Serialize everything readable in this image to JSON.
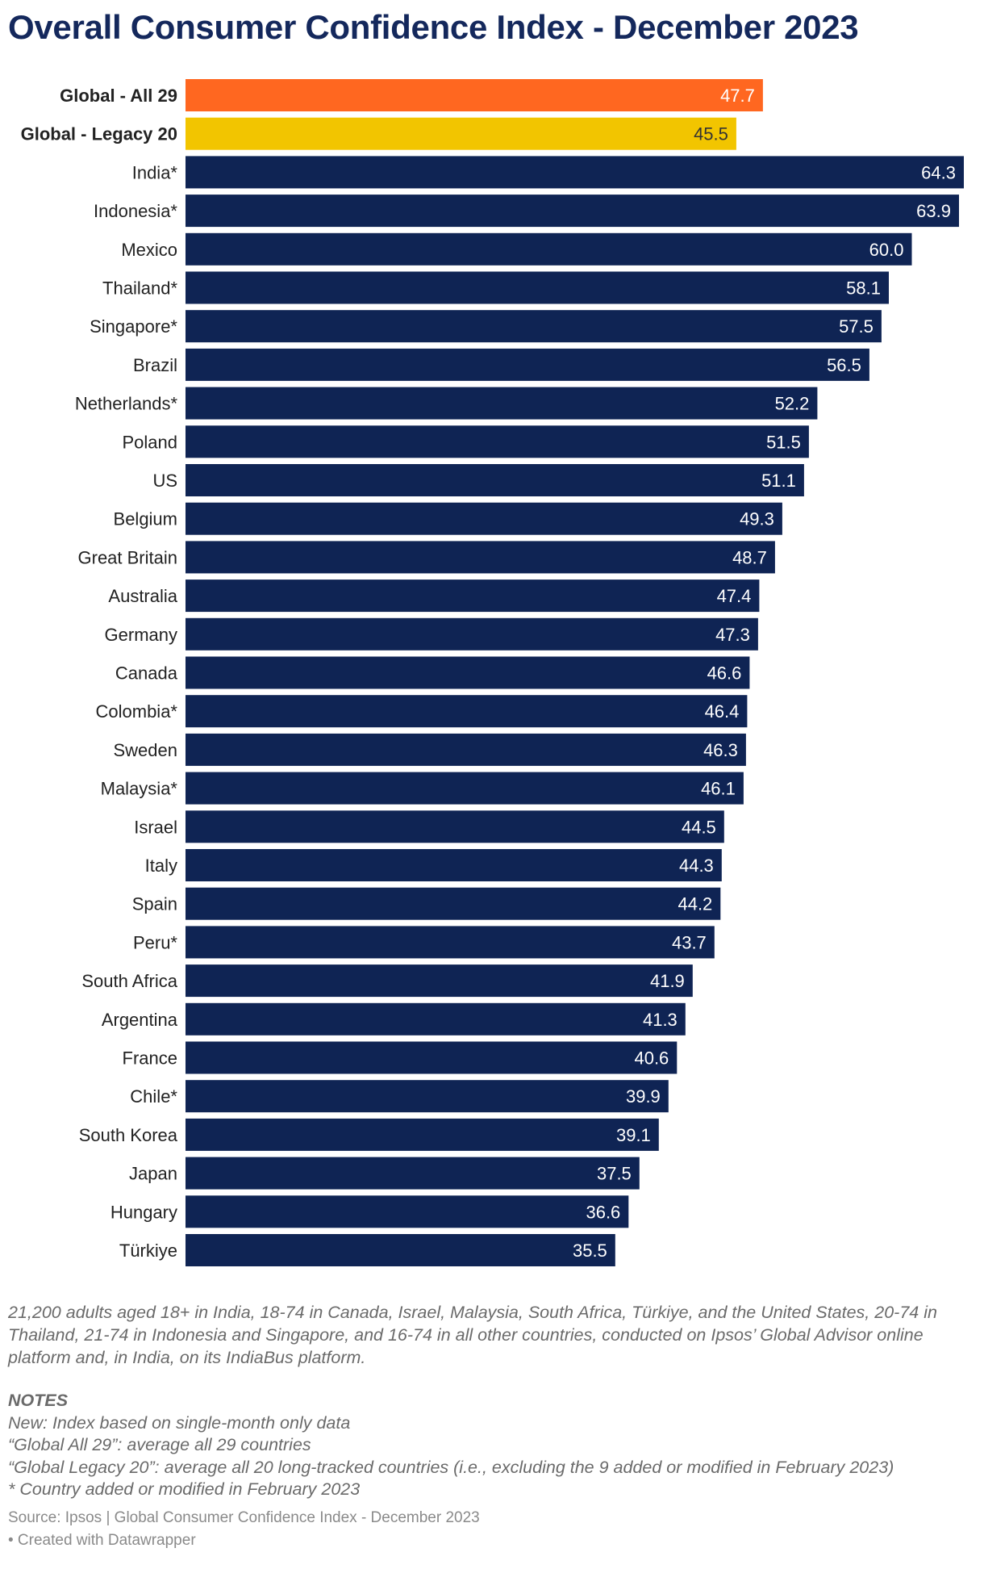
{
  "title": "Overall Consumer Confidence Index - December 2023",
  "description": "21,200 adults aged 18+ in India, 18-74 in Canada, Israel, Malaysia, South Africa, Türkiye, and the United States, 20-74 in Thailand, 21-74 in Indonesia and Singapore, and 16-74 in all other countries, conducted on Ipsos’ Global Advisor online platform and, in India, on its IndiaBus platform.",
  "notes": {
    "heading": "NOTES",
    "lines": [
      "New: Index based on single-month only data",
      "“Global All 29”: average all 29 countries",
      "“Global Legacy 20”: average all 20 long-tracked countries (i.e., excluding the 9 added or modified in February 2023)",
      "* Country added or modified in February 2023"
    ]
  },
  "source": "Source: Ipsos | Global Consumer Confidence Index - December 2023",
  "credit": "• Created with Datawrapper",
  "colors": {
    "global_all": "#ff6720",
    "global_legacy": "#f2c500",
    "country": "#0f2454",
    "title": "#14285c"
  },
  "chart_data": {
    "type": "bar",
    "orientation": "horizontal",
    "title": "Overall Consumer Confidence Index - December 2023",
    "xlabel": "",
    "ylabel": "",
    "xlim": [
      0,
      64.3
    ],
    "grid": false,
    "legend": "none",
    "categories": [
      "Global - All 29",
      "Global - Legacy 20",
      "India*",
      "Indonesia*",
      "Mexico",
      "Thailand*",
      "Singapore*",
      "Brazil",
      "Netherlands*",
      "Poland",
      "US",
      "Belgium",
      "Great Britain",
      "Australia",
      "Germany",
      "Canada",
      "Colombia*",
      "Sweden",
      "Malaysia*",
      "Israel",
      "Italy",
      "Spain",
      "Peru*",
      "South Africa",
      "Argentina",
      "France",
      "Chile*",
      "South Korea",
      "Japan",
      "Hungary",
      "Türkiye"
    ],
    "values": [
      47.7,
      45.5,
      64.3,
      63.9,
      60.0,
      58.1,
      57.5,
      56.5,
      52.2,
      51.5,
      51.1,
      49.3,
      48.7,
      47.4,
      47.3,
      46.6,
      46.4,
      46.3,
      46.1,
      44.5,
      44.3,
      44.2,
      43.7,
      41.9,
      41.3,
      40.6,
      39.9,
      39.1,
      37.5,
      36.6,
      35.5
    ],
    "value_labels": [
      "47.7",
      "45.5",
      "64.3",
      "63.9",
      "60.0",
      "58.1",
      "57.5",
      "56.5",
      "52.2",
      "51.5",
      "51.1",
      "49.3",
      "48.7",
      "47.4",
      "47.3",
      "46.6",
      "46.4",
      "46.3",
      "46.1",
      "44.5",
      "44.3",
      "44.2",
      "43.7",
      "41.9",
      "41.3",
      "40.6",
      "39.9",
      "39.1",
      "37.5",
      "36.6",
      "35.5"
    ],
    "highlight": {
      "Global - All 29": "global_all",
      "Global - Legacy 20": "global_legacy"
    }
  }
}
